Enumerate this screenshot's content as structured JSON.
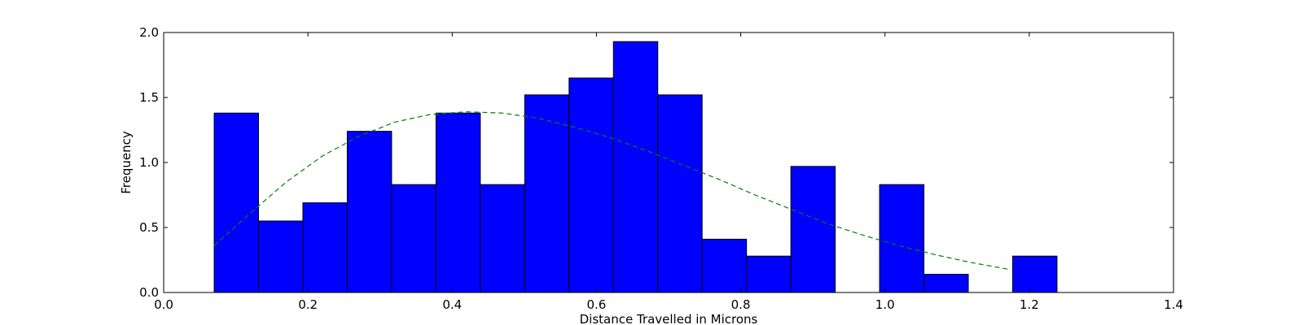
{
  "chart_data": {
    "type": "bar",
    "subtype": "histogram",
    "title": "",
    "xlabel": "Distance Travelled in Microns",
    "ylabel": "Frequency",
    "xlim": [
      0.0,
      1.4
    ],
    "ylim": [
      0.0,
      2.0
    ],
    "x_ticks": [
      "0.0",
      "0.2",
      "0.4",
      "0.6",
      "0.8",
      "1.0",
      "1.2",
      "1.4"
    ],
    "y_ticks": [
      "0.0",
      "0.5",
      "1.0",
      "1.5",
      "2.0"
    ],
    "grid": false,
    "legend": false,
    "bin_edges": [
      0.07,
      0.1315,
      0.193,
      0.2545,
      0.316,
      0.3775,
      0.439,
      0.5005,
      0.562,
      0.6235,
      0.685,
      0.7465,
      0.808,
      0.8695,
      0.931,
      0.9925,
      1.054,
      1.1155,
      1.177,
      1.2385
    ],
    "values": [
      1.38,
      0.55,
      0.69,
      1.24,
      0.83,
      1.38,
      0.83,
      1.52,
      1.65,
      1.93,
      1.52,
      0.41,
      0.28,
      0.97,
      0.0,
      0.83,
      0.14,
      0.0,
      0.28
    ],
    "bar_color": "#0000ff",
    "bar_edge_color": "#000000",
    "fit_curve": {
      "style": "dashed",
      "color": "#008000",
      "x": [
        0.07,
        0.12,
        0.17,
        0.22,
        0.27,
        0.32,
        0.37,
        0.42,
        0.47,
        0.52,
        0.57,
        0.62,
        0.67,
        0.72,
        0.77,
        0.82,
        0.87,
        0.92,
        0.97,
        1.02,
        1.07,
        1.12,
        1.17
      ],
      "y": [
        0.36,
        0.61,
        0.85,
        1.05,
        1.2,
        1.31,
        1.37,
        1.39,
        1.38,
        1.34,
        1.27,
        1.19,
        1.09,
        0.98,
        0.87,
        0.75,
        0.64,
        0.53,
        0.44,
        0.36,
        0.29,
        0.23,
        0.18
      ]
    }
  }
}
